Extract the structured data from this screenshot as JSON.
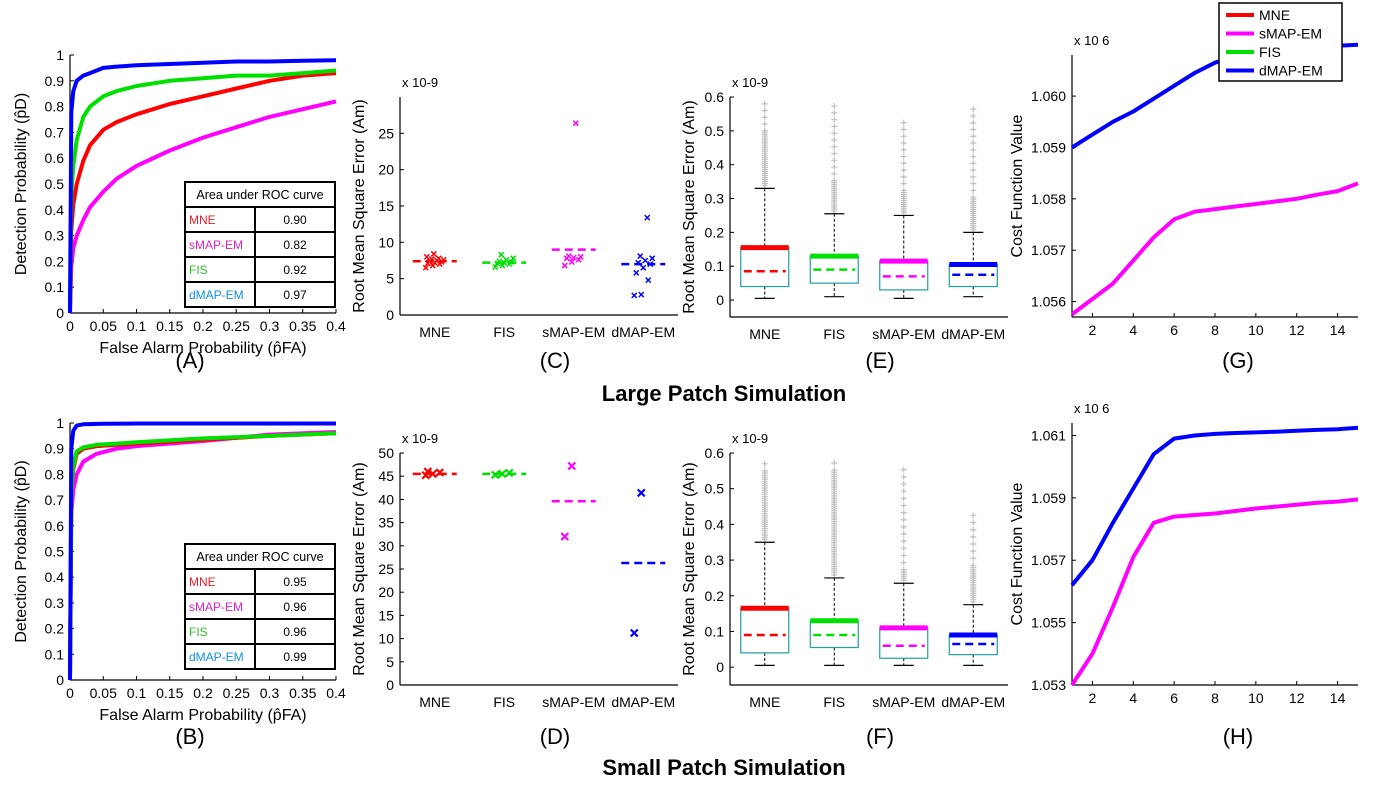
{
  "legend": {
    "entries": [
      {
        "name": "MNE",
        "color": "#ff0000"
      },
      {
        "name": "sMAP-EM",
        "color": "#ff00ff"
      },
      {
        "name": "FIS",
        "color": "#00e000"
      },
      {
        "name": "dMAP-EM",
        "color": "#0000ff"
      }
    ]
  },
  "section_titles": {
    "large": "Large Patch Simulation",
    "small": "Small Patch Simulation"
  },
  "chart_data": [
    {
      "id": "A",
      "type": "line",
      "caption": "(A)",
      "xlabel": "False Alarm Probability (p̂FA)",
      "ylabel": "Detection Probability (p̂D)",
      "xlim": [
        0,
        0.4
      ],
      "ylim": [
        0,
        1
      ],
      "xticks": [
        "0",
        "0.05",
        "0.1",
        "0.15",
        "0.2",
        "0.25",
        "0.3",
        "0.35",
        "0.4"
      ],
      "yticks": [
        "0",
        "0.1",
        "0.2",
        "0.3",
        "0.4",
        "0.5",
        "0.6",
        "0.7",
        "0.8",
        "0.9",
        "1"
      ],
      "series": [
        {
          "color": "#ff00ff",
          "x": [
            0,
            0.002,
            0.005,
            0.01,
            0.02,
            0.03,
            0.05,
            0.07,
            0.1,
            0.15,
            0.2,
            0.25,
            0.3,
            0.35,
            0.4
          ],
          "y": [
            0,
            0.18,
            0.25,
            0.3,
            0.36,
            0.41,
            0.47,
            0.52,
            0.57,
            0.63,
            0.68,
            0.72,
            0.76,
            0.79,
            0.82
          ]
        },
        {
          "color": "#ff0000",
          "x": [
            0,
            0.002,
            0.005,
            0.01,
            0.02,
            0.03,
            0.05,
            0.07,
            0.1,
            0.15,
            0.2,
            0.25,
            0.3,
            0.35,
            0.4
          ],
          "y": [
            0,
            0.32,
            0.42,
            0.5,
            0.59,
            0.65,
            0.71,
            0.74,
            0.77,
            0.81,
            0.84,
            0.87,
            0.9,
            0.92,
            0.93
          ]
        },
        {
          "color": "#00e000",
          "x": [
            0,
            0.002,
            0.005,
            0.01,
            0.02,
            0.03,
            0.05,
            0.07,
            0.1,
            0.15,
            0.2,
            0.25,
            0.3,
            0.35,
            0.4
          ],
          "y": [
            0,
            0.46,
            0.57,
            0.67,
            0.76,
            0.8,
            0.84,
            0.86,
            0.88,
            0.9,
            0.91,
            0.92,
            0.92,
            0.93,
            0.94
          ]
        },
        {
          "color": "#0000ff",
          "x": [
            0,
            0.002,
            0.005,
            0.01,
            0.02,
            0.03,
            0.05,
            0.07,
            0.1,
            0.15,
            0.2,
            0.25,
            0.3,
            0.35,
            0.4
          ],
          "y": [
            0,
            0.78,
            0.86,
            0.9,
            0.92,
            0.93,
            0.95,
            0.955,
            0.96,
            0.965,
            0.97,
            0.975,
            0.975,
            0.978,
            0.98
          ]
        }
      ],
      "auc_table": {
        "header": "Area under ROC curve",
        "rows": [
          {
            "label": "MNE",
            "value": "0.90",
            "color": "#e8202a"
          },
          {
            "label": "sMAP-EM",
            "value": "0.82",
            "color": "#e020c0"
          },
          {
            "label": "FIS",
            "value": "0.92",
            "color": "#30c030"
          },
          {
            "label": "dMAP-EM",
            "value": "0.97",
            "color": "#1090e0"
          }
        ]
      }
    },
    {
      "id": "B",
      "type": "line",
      "caption": "(B)",
      "xlabel": "False Alarm Probability (p̂FA)",
      "ylabel": "Detection Probability (p̂D)",
      "xlim": [
        0,
        0.4
      ],
      "ylim": [
        0,
        1
      ],
      "xticks": [
        "0",
        "0.05",
        "0.1",
        "0.15",
        "0.2",
        "0.25",
        "0.3",
        "0.35",
        "0.4"
      ],
      "yticks": [
        "0",
        "0.1",
        "0.2",
        "0.3",
        "0.4",
        "0.5",
        "0.6",
        "0.7",
        "0.8",
        "0.9",
        "1"
      ],
      "series": [
        {
          "color": "#ff00ff",
          "x": [
            0,
            0.002,
            0.005,
            0.01,
            0.02,
            0.04,
            0.07,
            0.1,
            0.2,
            0.3,
            0.4
          ],
          "y": [
            0,
            0.65,
            0.74,
            0.8,
            0.85,
            0.88,
            0.9,
            0.91,
            0.93,
            0.955,
            0.965
          ]
        },
        {
          "color": "#ff0000",
          "x": [
            0,
            0.002,
            0.005,
            0.01,
            0.02,
            0.04,
            0.07,
            0.1,
            0.2,
            0.3,
            0.4
          ],
          "y": [
            0,
            0.72,
            0.82,
            0.88,
            0.9,
            0.91,
            0.915,
            0.92,
            0.935,
            0.95,
            0.96
          ]
        },
        {
          "color": "#00e000",
          "x": [
            0,
            0.002,
            0.005,
            0.01,
            0.02,
            0.04,
            0.07,
            0.1,
            0.2,
            0.3,
            0.4
          ],
          "y": [
            0,
            0.72,
            0.83,
            0.89,
            0.905,
            0.915,
            0.92,
            0.925,
            0.94,
            0.95,
            0.96
          ]
        },
        {
          "color": "#0000ff",
          "x": [
            0,
            0.002,
            0.005,
            0.01,
            0.02,
            0.05,
            0.1,
            0.4
          ],
          "y": [
            0,
            0.9,
            0.97,
            0.99,
            0.995,
            0.997,
            0.998,
            0.998
          ]
        }
      ],
      "auc_table": {
        "header": "Area under ROC curve",
        "rows": [
          {
            "label": "MNE",
            "value": "0.95",
            "color": "#e8202a"
          },
          {
            "label": "sMAP-EM",
            "value": "0.96",
            "color": "#e020c0"
          },
          {
            "label": "FIS",
            "value": "0.96",
            "color": "#30c030"
          },
          {
            "label": "dMAP-EM",
            "value": "0.99",
            "color": "#1090e0"
          }
        ]
      }
    },
    {
      "id": "C",
      "type": "scatter",
      "caption": "(C)",
      "ylabel": "Root Mean Square Error (Am)",
      "yexponent": "x 10-9",
      "ylim": [
        0,
        30
      ],
      "yticks": [
        "0",
        "5",
        "10",
        "15",
        "20",
        "25"
      ],
      "categories": [
        "MNE",
        "FIS",
        "sMAP-EM",
        "dMAP-EM"
      ],
      "groups": [
        {
          "color": "#ff0000",
          "mean": 7.4,
          "points": [
            6.5,
            6.8,
            7,
            7.1,
            7.2,
            7.3,
            7.4,
            7.5,
            7.6,
            7.7,
            7.8,
            8,
            8.4
          ]
        },
        {
          "color": "#00e000",
          "mean": 7.2,
          "points": [
            6.6,
            6.8,
            7,
            7.1,
            7.2,
            7.3,
            7.4,
            7.6,
            7.8,
            8.3
          ]
        },
        {
          "color": "#ff00ff",
          "mean": 9,
          "points": [
            6.8,
            7.3,
            7.6,
            7.8,
            7.9,
            8,
            8.1,
            26.4
          ]
        },
        {
          "color": "#0000ff",
          "mean": 7,
          "points": [
            2.7,
            2.8,
            4.8,
            5.8,
            6.5,
            7,
            7.2,
            7.5,
            7.8,
            8.1,
            13.4
          ]
        }
      ]
    },
    {
      "id": "D",
      "type": "scatter",
      "caption": "(D)",
      "ylabel": "Root Mean Square Error (Am)",
      "yexponent": "x 10-9",
      "ylim": [
        0,
        50
      ],
      "yticks": [
        "0",
        "5",
        "10",
        "15",
        "20",
        "25",
        "30",
        "35",
        "40",
        "45",
        "50"
      ],
      "categories": [
        "MNE",
        "FIS",
        "sMAP-EM",
        "dMAP-EM"
      ],
      "groups": [
        {
          "color": "#ff0000",
          "mean": 45.5,
          "points": [
            45.2,
            45.5,
            45.8,
            46
          ]
        },
        {
          "color": "#00e000",
          "mean": 45.5,
          "points": [
            45.3,
            45.5,
            45.7
          ]
        },
        {
          "color": "#ff00ff",
          "mean": 39.6,
          "points": [
            32,
            47.2
          ]
        },
        {
          "color": "#0000ff",
          "mean": 26.3,
          "points": [
            11.2,
            41.4
          ]
        }
      ]
    },
    {
      "id": "E",
      "type": "box",
      "caption": "(E)",
      "ylabel": "Root Mean Square Error (Am)",
      "yexponent": "x 10-9",
      "ylim": [
        -0.05,
        0.6
      ],
      "yticks": [
        "0",
        "0.1",
        "0.2",
        "0.3",
        "0.4",
        "0.5",
        "0.6"
      ],
      "categories": [
        "MNE",
        "FIS",
        "sMAP-EM",
        "dMAP-EM"
      ],
      "boxes": [
        {
          "color": "#ff0000",
          "q1": 0.04,
          "q3": 0.155,
          "median": 0.085,
          "mean_bar": 0.155,
          "wlow": 0.005,
          "whigh": 0.33,
          "outlier_top": 0.59,
          "outlier_dense": 0.5
        },
        {
          "color": "#00e000",
          "q1": 0.05,
          "q3": 0.13,
          "median": 0.09,
          "mean_bar": 0.13,
          "wlow": 0.01,
          "whigh": 0.255,
          "outlier_top": 0.59,
          "outlier_dense": 0.35
        },
        {
          "color": "#ff00ff",
          "q1": 0.03,
          "q3": 0.115,
          "median": 0.07,
          "mean_bar": 0.115,
          "wlow": 0.005,
          "whigh": 0.25,
          "outlier_top": 0.54,
          "outlier_dense": 0.32
        },
        {
          "color": "#0000ff",
          "q1": 0.04,
          "q3": 0.105,
          "median": 0.075,
          "mean_bar": 0.105,
          "wlow": 0.01,
          "whigh": 0.2,
          "outlier_top": 0.57,
          "outlier_dense": 0.3
        }
      ]
    },
    {
      "id": "F",
      "type": "box",
      "caption": "(F)",
      "ylabel": "Root Mean Square Error (Am)",
      "yexponent": "x 10-9",
      "ylim": [
        -0.05,
        0.6
      ],
      "yticks": [
        "0",
        "0.1",
        "0.2",
        "0.3",
        "0.4",
        "0.5",
        "0.6"
      ],
      "categories": [
        "MNE",
        "FIS",
        "sMAP-EM",
        "dMAP-EM"
      ],
      "boxes": [
        {
          "color": "#ff0000",
          "q1": 0.04,
          "q3": 0.165,
          "median": 0.09,
          "mean_bar": 0.165,
          "wlow": 0.005,
          "whigh": 0.35,
          "outlier_top": 0.59,
          "outlier_dense": 0.55
        },
        {
          "color": "#00e000",
          "q1": 0.055,
          "q3": 0.13,
          "median": 0.09,
          "mean_bar": 0.13,
          "wlow": 0.005,
          "whigh": 0.25,
          "outlier_top": 0.59,
          "outlier_dense": 0.55
        },
        {
          "color": "#ff00ff",
          "q1": 0.025,
          "q3": 0.11,
          "median": 0.06,
          "mean_bar": 0.11,
          "wlow": 0.005,
          "whigh": 0.235,
          "outlier_top": 0.57,
          "outlier_dense": 0.27
        },
        {
          "color": "#0000ff",
          "q1": 0.035,
          "q3": 0.09,
          "median": 0.065,
          "mean_bar": 0.09,
          "wlow": 0.005,
          "whigh": 0.175,
          "outlier_top": 0.44,
          "outlier_dense": 0.28
        }
      ]
    },
    {
      "id": "G",
      "type": "line",
      "caption": "(G)",
      "ylabel": "Cost Function Value",
      "yexponent": "x 10 6",
      "xlim": [
        1,
        15
      ],
      "ylim": [
        1.0557,
        1.0608
      ],
      "xticks": [
        "2",
        "4",
        "6",
        "8",
        "10",
        "12",
        "14"
      ],
      "yticks": [
        "1.056",
        "1.057",
        "1.058",
        "1.059",
        "1.060"
      ],
      "series": [
        {
          "color": "#ff00ff",
          "x": [
            1,
            2,
            3,
            4,
            5,
            6,
            7,
            8,
            9,
            10,
            11,
            12,
            13,
            14,
            15
          ],
          "y": [
            1.05575,
            1.05605,
            1.05635,
            1.0568,
            1.05725,
            1.0576,
            1.05775,
            1.0578,
            1.05785,
            1.0579,
            1.05795,
            1.058,
            1.05808,
            1.05815,
            1.0583
          ]
        },
        {
          "color": "#0000ff",
          "x": [
            1,
            2,
            3,
            4,
            5,
            6,
            7,
            8,
            9,
            10,
            11,
            12,
            13,
            14,
            15
          ],
          "y": [
            1.059,
            1.05925,
            1.0595,
            1.0597,
            1.05995,
            1.0602,
            1.06045,
            1.06065,
            1.06078,
            1.06085,
            1.06088,
            1.06092,
            1.06095,
            1.06098,
            1.061
          ]
        }
      ]
    },
    {
      "id": "H",
      "type": "line",
      "caption": "(H)",
      "ylabel": "Cost Function Value",
      "yexponent": "x 10 6",
      "xlim": [
        1,
        15
      ],
      "ylim": [
        1.053,
        1.0614
      ],
      "xticks": [
        "2",
        "4",
        "6",
        "8",
        "10",
        "12",
        "14"
      ],
      "yticks": [
        "1.053",
        "1.055",
        "1.057",
        "1.059",
        "1.061"
      ],
      "series": [
        {
          "color": "#ff00ff",
          "x": [
            1,
            2,
            3,
            4,
            5,
            6,
            7,
            8,
            9,
            10,
            11,
            12,
            13,
            14,
            15
          ],
          "y": [
            1.053,
            1.054,
            1.0555,
            1.0571,
            1.0582,
            1.0584,
            1.05845,
            1.0585,
            1.05858,
            1.05866,
            1.05872,
            1.05878,
            1.05884,
            1.05888,
            1.05895
          ]
        },
        {
          "color": "#0000ff",
          "x": [
            1,
            2,
            3,
            4,
            5,
            6,
            7,
            8,
            9,
            10,
            11,
            12,
            13,
            14,
            15
          ],
          "y": [
            1.0562,
            1.057,
            1.0582,
            1.0593,
            1.0604,
            1.0609,
            1.061,
            1.06105,
            1.06108,
            1.0611,
            1.06112,
            1.06115,
            1.06118,
            1.0612,
            1.06125
          ]
        }
      ]
    }
  ]
}
